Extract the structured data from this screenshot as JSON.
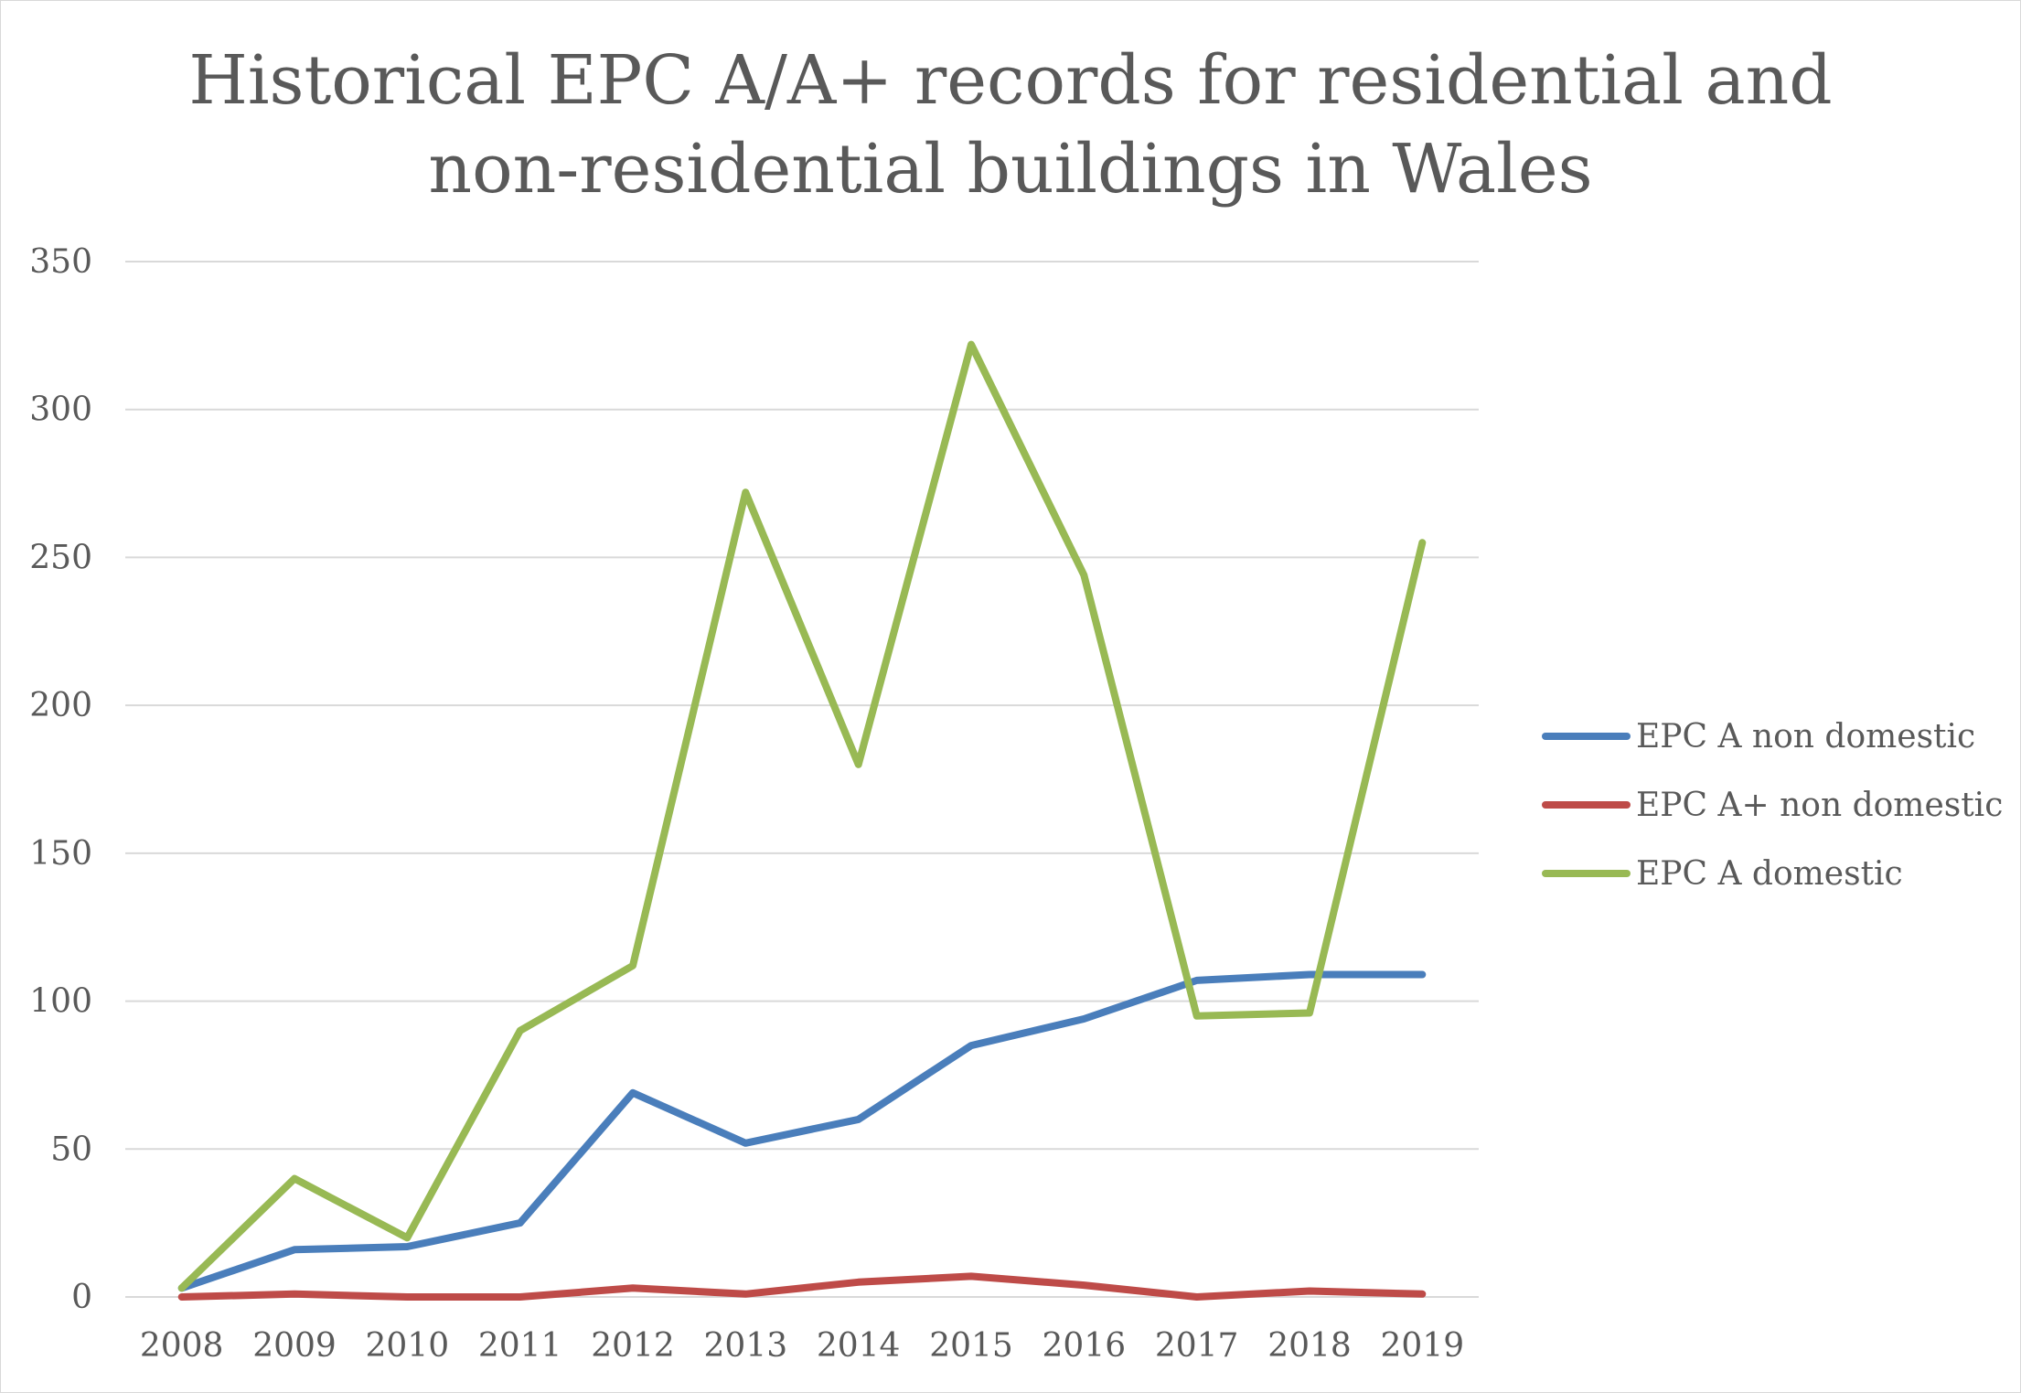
{
  "chart_data": {
    "type": "line",
    "title_lines": [
      "Historical EPC A/A+ records for residential and",
      "non-residential buildings in Wales"
    ],
    "xlabel": "",
    "ylabel": "",
    "categories": [
      "2008",
      "2009",
      "2010",
      "2011",
      "2012",
      "2013",
      "2014",
      "2015",
      "2016",
      "2017",
      "2018",
      "2019"
    ],
    "ylim": [
      0,
      350
    ],
    "yticks": [
      0,
      50,
      100,
      150,
      200,
      250,
      300,
      350
    ],
    "grid": true,
    "legend_position": "right",
    "series": [
      {
        "name": "EPC A non domestic",
        "color": "#4a7ebb",
        "values": [
          3,
          16,
          17,
          25,
          69,
          52,
          60,
          85,
          94,
          107,
          109,
          109
        ]
      },
      {
        "name": "EPC A+ non domestic",
        "color": "#be4b48",
        "values": [
          0,
          1,
          0,
          0,
          3,
          1,
          5,
          7,
          4,
          0,
          2,
          1
        ]
      },
      {
        "name": "EPC A domestic",
        "color": "#98b954",
        "values": [
          3,
          40,
          20,
          90,
          112,
          272,
          180,
          322,
          244,
          95,
          96,
          255
        ]
      }
    ]
  }
}
